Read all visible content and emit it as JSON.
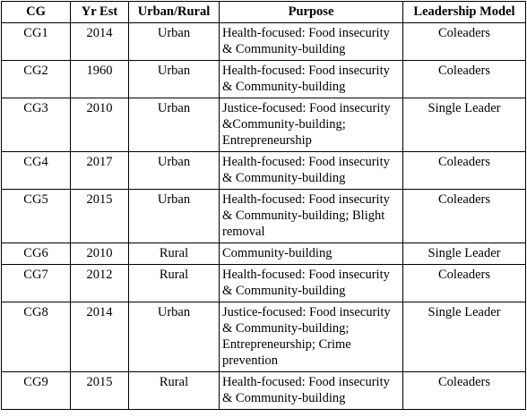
{
  "table": {
    "header": [
      "CG",
      "Yr Est",
      "Urban/Rural",
      "Purpose",
      "Leadership Model"
    ],
    "rows": [
      [
        "CG1",
        2014,
        "Urban",
        "Health-focused: Food insecurity & Community-building",
        "Coleaders"
      ],
      [
        "CG2",
        1960,
        "Urban",
        "Health-focused: Food insecurity & Community-building",
        "Coleaders"
      ],
      [
        "CG3",
        2010,
        "Urban",
        "Justice-focused: Food insecurity &Community-building; Entrepreneurship",
        "Single Leader"
      ],
      [
        "CG4",
        2017,
        "Urban",
        "Health-focused: Food insecurity & Community-building",
        "Coleaders"
      ],
      [
        "CG5",
        2015,
        "Urban",
        "Health-focused: Food insecurity & Community-building; Blight removal",
        "Coleaders"
      ],
      [
        "CG6",
        2010,
        "Rural",
        "Community-building",
        "Single Leader"
      ],
      [
        "CG7",
        2012,
        "Rural",
        "Health-focused: Food insecurity & Community-building",
        "Coleaders"
      ],
      [
        "CG8",
        2014,
        "Urban",
        "Justice-focused: Food insecurity & Community-building; Entrepreneurship; Crime prevention",
        "Single Leader"
      ],
      [
        "CG9",
        2015,
        "Rural",
        "Health-focused: Food insecurity & Community-building",
        "Coleaders"
      ]
    ]
  }
}
